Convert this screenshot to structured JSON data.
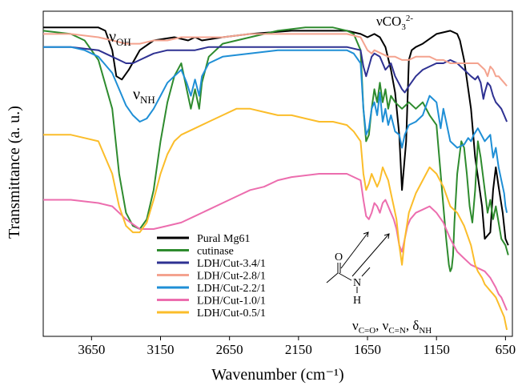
{
  "chart_data": {
    "type": "line",
    "title": "",
    "xlabel": "Wavenumber (cm⁻¹)",
    "ylabel": "Transmittance (a. u.)",
    "x_reversed": true,
    "xlim": [
      4000,
      600
    ],
    "ylim": [
      0,
      100
    ],
    "yticks_shown": false,
    "grid": false,
    "xticks": [
      3650,
      3150,
      2650,
      2150,
      1650,
      1150,
      650
    ],
    "legend": {
      "placement": "bottom-left"
    },
    "annotations": {
      "nu_oh": {
        "main": "ν",
        "sub": "OH"
      },
      "nu_nh": {
        "main": "ν",
        "sub": "NH"
      },
      "nu_co3": {
        "main": "νCO",
        "sub": "3",
        "sup": "2-"
      },
      "amide_bands": {
        "p1": "ν",
        "s1": "C=O",
        "p2": ", ν",
        "s2": "C=N",
        "p3": ", δ",
        "s3": "NH"
      },
      "amide_structure": {
        "o": "O",
        "n": "N",
        "h": "H"
      }
    },
    "series": [
      {
        "name": "Pural Mg61",
        "color": "#000000",
        "x": [
          4000,
          3800,
          3600,
          3550,
          3500,
          3470,
          3430,
          3380,
          3300,
          3200,
          3050,
          2950,
          2900,
          2850,
          2700,
          2500,
          2200,
          2000,
          1800,
          1700,
          1650,
          1600,
          1560,
          1520,
          1480,
          1450,
          1420,
          1400,
          1370,
          1350,
          1330,
          1300,
          1250,
          1150,
          1050,
          1000,
          980,
          950,
          900,
          870,
          820,
          800,
          760,
          740,
          720,
          700,
          670,
          650,
          630
        ],
        "y": [
          95,
          95,
          95,
          94,
          88,
          80,
          79,
          82,
          88,
          91,
          92,
          91,
          92,
          91,
          92,
          93,
          94,
          94,
          94,
          93,
          92,
          93,
          92,
          89,
          82,
          75,
          62,
          45,
          60,
          85,
          88,
          89,
          90,
          93,
          94,
          93,
          91,
          85,
          70,
          55,
          40,
          30,
          32,
          45,
          52,
          46,
          38,
          30,
          28
        ]
      },
      {
        "name": "cutinase",
        "color": "#2e8b2e",
        "x": [
          4000,
          3800,
          3700,
          3600,
          3500,
          3450,
          3400,
          3350,
          3300,
          3250,
          3200,
          3150,
          3100,
          3050,
          3000,
          2960,
          2930,
          2900,
          2870,
          2850,
          2800,
          2700,
          2500,
          2300,
          2100,
          1900,
          1800,
          1750,
          1700,
          1680,
          1660,
          1640,
          1620,
          1600,
          1580,
          1560,
          1540,
          1520,
          1500,
          1480,
          1450,
          1400,
          1350,
          1300,
          1250,
          1200,
          1150,
          1120,
          1100,
          1080,
          1060,
          1050,
          1040,
          1030,
          1020,
          1000,
          970,
          950,
          930,
          910,
          890,
          870,
          850,
          830,
          800,
          780,
          760,
          740,
          720,
          700,
          680,
          650,
          630
        ],
        "y": [
          94,
          93,
          91,
          85,
          70,
          50,
          38,
          34,
          33,
          36,
          45,
          60,
          72,
          80,
          84,
          76,
          70,
          76,
          70,
          78,
          86,
          90,
          92,
          94,
          95,
          95,
          94,
          93,
          88,
          70,
          60,
          62,
          70,
          76,
          72,
          78,
          72,
          76,
          70,
          74,
          72,
          70,
          72,
          70,
          72,
          68,
          65,
          50,
          40,
          30,
          22,
          20,
          21,
          25,
          35,
          50,
          60,
          58,
          50,
          40,
          35,
          45,
          60,
          55,
          45,
          38,
          42,
          36,
          40,
          35,
          30,
          28,
          25
        ]
      },
      {
        "name": "LDH/Cut-3.4/1",
        "color": "#2e3192",
        "x": [
          4000,
          3800,
          3600,
          3550,
          3500,
          3450,
          3400,
          3350,
          3300,
          3250,
          3200,
          3100,
          3000,
          2900,
          2800,
          2600,
          2400,
          2200,
          2000,
          1800,
          1700,
          1680,
          1660,
          1640,
          1620,
          1600,
          1560,
          1520,
          1480,
          1450,
          1400,
          1380,
          1350,
          1300,
          1250,
          1200,
          1150,
          1100,
          1050,
          1000,
          950,
          900,
          870,
          850,
          830,
          810,
          800,
          780,
          760,
          740,
          720,
          700,
          680,
          660,
          640
        ],
        "y": [
          89,
          89,
          88,
          87,
          86,
          85,
          84,
          84,
          85,
          86,
          87,
          88,
          88,
          88,
          89,
          89,
          89,
          89,
          89,
          89,
          88,
          83,
          80,
          83,
          86,
          87,
          86,
          82,
          84,
          80,
          76,
          75,
          77,
          80,
          82,
          83,
          84,
          84,
          85,
          84,
          82,
          80,
          79,
          80,
          78,
          73,
          75,
          78,
          77,
          74,
          72,
          71,
          70,
          68,
          66
        ]
      },
      {
        "name": "LDH/Cut-2.8/1",
        "color": "#f4a38f",
        "x": [
          4000,
          3800,
          3600,
          3500,
          3400,
          3300,
          3200,
          3100,
          3000,
          2900,
          2700,
          2500,
          2300,
          2100,
          1900,
          1800,
          1700,
          1650,
          1620,
          1600,
          1550,
          1500,
          1450,
          1400,
          1350,
          1300,
          1250,
          1200,
          1150,
          1100,
          1050,
          1000,
          950,
          900,
          850,
          800,
          780,
          760,
          740,
          720,
          700,
          680,
          660,
          640
        ],
        "y": [
          93,
          93,
          92,
          91,
          90,
          90,
          91,
          91,
          92,
          92,
          92,
          93,
          93,
          93,
          93,
          93,
          92,
          88,
          87,
          88,
          87,
          86,
          86,
          85,
          85,
          86,
          86,
          86,
          85,
          85,
          84,
          84,
          84,
          84,
          84,
          82,
          80,
          83,
          82,
          80,
          80,
          79,
          78,
          77
        ]
      },
      {
        "name": "LDH/Cut-2.2/1",
        "color": "#1f8fd6",
        "x": [
          4000,
          3800,
          3700,
          3600,
          3500,
          3450,
          3400,
          3350,
          3300,
          3250,
          3200,
          3150,
          3100,
          3050,
          3000,
          2960,
          2930,
          2900,
          2870,
          2850,
          2800,
          2700,
          2500,
          2300,
          2100,
          1900,
          1800,
          1750,
          1700,
          1680,
          1660,
          1640,
          1620,
          1600,
          1580,
          1560,
          1540,
          1520,
          1500,
          1480,
          1450,
          1420,
          1400,
          1380,
          1350,
          1300,
          1250,
          1200,
          1150,
          1120,
          1100,
          1080,
          1050,
          1000,
          950,
          920,
          900,
          880,
          850,
          800,
          760,
          740,
          720,
          700,
          680,
          660,
          650,
          640
        ],
        "y": [
          89,
          89,
          88,
          86,
          81,
          76,
          71,
          68,
          66,
          67,
          70,
          74,
          78,
          80,
          82,
          78,
          74,
          79,
          74,
          80,
          84,
          86,
          87,
          88,
          88,
          88,
          88,
          87,
          84,
          70,
          62,
          64,
          70,
          72,
          68,
          75,
          66,
          70,
          65,
          68,
          63,
          62,
          58,
          62,
          65,
          66,
          68,
          74,
          72,
          64,
          70,
          66,
          60,
          58,
          59,
          61,
          60,
          62,
          64,
          60,
          62,
          55,
          58,
          52,
          48,
          44,
          40,
          38
        ]
      },
      {
        "name": "LDH/Cut-1.0/1",
        "color": "#ec6dae",
        "x": [
          4000,
          3800,
          3600,
          3500,
          3400,
          3300,
          3200,
          3100,
          3000,
          2900,
          2800,
          2700,
          2600,
          2500,
          2400,
          2300,
          2200,
          2000,
          1800,
          1700,
          1680,
          1660,
          1640,
          1620,
          1600,
          1580,
          1560,
          1540,
          1520,
          1500,
          1480,
          1460,
          1440,
          1420,
          1400,
          1380,
          1360,
          1340,
          1300,
          1250,
          1200,
          1150,
          1100,
          1050,
          1000,
          950,
          900,
          850,
          800,
          760,
          720,
          700,
          680,
          660,
          640
        ],
        "y": [
          42,
          42,
          41,
          40,
          36,
          33,
          33,
          34,
          35,
          37,
          39,
          41,
          43,
          45,
          46,
          48,
          49,
          50,
          50,
          48,
          42,
          37,
          36,
          38,
          41,
          40,
          38,
          41,
          42,
          40,
          38,
          36,
          33,
          28,
          26,
          30,
          34,
          36,
          38,
          39,
          40,
          38,
          35,
          30,
          26,
          24,
          22,
          21,
          20,
          18,
          15,
          13,
          12,
          10,
          8
        ]
      },
      {
        "name": "LDH/Cut-0.5/1",
        "color": "#fbbd2a",
        "x": [
          4000,
          3800,
          3700,
          3600,
          3500,
          3450,
          3400,
          3350,
          3300,
          3250,
          3200,
          3150,
          3100,
          3050,
          3000,
          2900,
          2800,
          2700,
          2600,
          2500,
          2400,
          2300,
          2200,
          2100,
          2000,
          1900,
          1800,
          1750,
          1700,
          1680,
          1660,
          1640,
          1620,
          1600,
          1580,
          1560,
          1540,
          1520,
          1500,
          1480,
          1460,
          1440,
          1420,
          1400,
          1380,
          1350,
          1300,
          1250,
          1200,
          1150,
          1100,
          1050,
          1000,
          950,
          900,
          870,
          850,
          820,
          800,
          780,
          760,
          740,
          720,
          700,
          680,
          660,
          650,
          640
        ],
        "y": [
          62,
          62,
          61,
          60,
          50,
          40,
          34,
          32,
          32,
          35,
          42,
          50,
          56,
          60,
          62,
          64,
          66,
          68,
          70,
          70,
          69,
          68,
          68,
          67,
          66,
          66,
          65,
          63,
          60,
          50,
          45,
          47,
          50,
          48,
          46,
          48,
          52,
          50,
          48,
          44,
          40,
          36,
          28,
          22,
          30,
          38,
          44,
          48,
          52,
          50,
          46,
          40,
          38,
          34,
          28,
          22,
          20,
          18,
          16,
          15,
          14,
          13,
          12,
          10,
          8,
          6,
          4,
          2
        ]
      }
    ]
  }
}
